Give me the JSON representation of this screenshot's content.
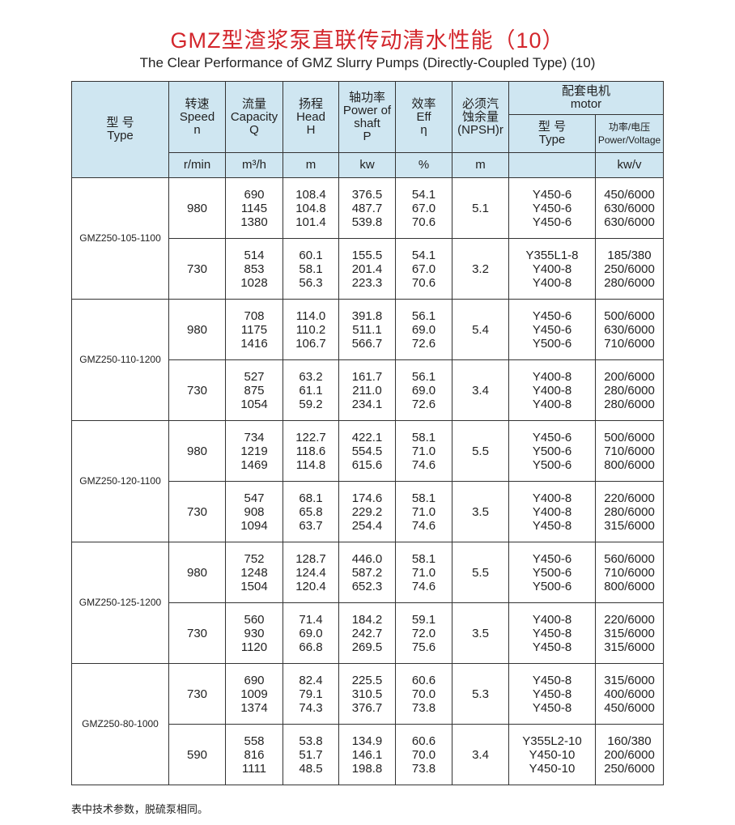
{
  "title": "GMZ型渣浆泵直联传动清水性能（10）",
  "subtitle": "The Clear Performance of GMZ Slurry Pumps (Directly-Coupled Type) (10)",
  "headers": {
    "type": [
      "型 号",
      "Type"
    ],
    "speed": [
      "转速",
      "Speed",
      "n"
    ],
    "capacity": [
      "流量",
      "Capacity",
      "Q"
    ],
    "head": [
      "扬程",
      "Head",
      "H"
    ],
    "power": [
      "轴功率",
      "Power of",
      "shaft",
      "P"
    ],
    "eff": [
      "效率",
      "Eff",
      "η"
    ],
    "npsh": [
      "必须汽",
      "蚀余量",
      "(NPSH)r"
    ],
    "motor": [
      "配套电机",
      "motor"
    ],
    "motor_type": [
      "型 号",
      "Type"
    ],
    "power_voltage": [
      "功率/电压",
      "Power/Voltage"
    ]
  },
  "units": {
    "speed": "r/min",
    "capacity": "m³/h",
    "head": "m",
    "power": "kw",
    "eff": "%",
    "npsh": "m",
    "power_voltage": "kw/v"
  },
  "groups": [
    {
      "type": "GMZ250-105-1100",
      "speeds": [
        {
          "speed": "980",
          "capacity": [
            "690",
            "1145",
            "1380"
          ],
          "head": [
            "108.4",
            "104.8",
            "101.4"
          ],
          "power": [
            "376.5",
            "487.7",
            "539.8"
          ],
          "eff": [
            "54.1",
            "67.0",
            "70.6"
          ],
          "npsh": "5.1",
          "motor_type": [
            "Y450-6",
            "Y450-6",
            "Y450-6"
          ],
          "power_voltage": [
            "450/6000",
            "630/6000",
            "630/6000"
          ]
        },
        {
          "speed": "730",
          "capacity": [
            "514",
            "853",
            "1028"
          ],
          "head": [
            "60.1",
            "58.1",
            "56.3"
          ],
          "power": [
            "155.5",
            "201.4",
            "223.3"
          ],
          "eff": [
            "54.1",
            "67.0",
            "70.6"
          ],
          "npsh": "3.2",
          "motor_type": [
            "Y355L1-8",
            "Y400-8",
            "Y400-8"
          ],
          "power_voltage": [
            "185/380",
            "250/6000",
            "280/6000"
          ]
        }
      ]
    },
    {
      "type": "GMZ250-110-1200",
      "speeds": [
        {
          "speed": "980",
          "capacity": [
            "708",
            "1175",
            "1416"
          ],
          "head": [
            "114.0",
            "110.2",
            "106.7"
          ],
          "power": [
            "391.8",
            "511.1",
            "566.7"
          ],
          "eff": [
            "56.1",
            "69.0",
            "72.6"
          ],
          "npsh": "5.4",
          "motor_type": [
            "Y450-6",
            "Y450-6",
            "Y500-6"
          ],
          "power_voltage": [
            "500/6000",
            "630/6000",
            "710/6000"
          ]
        },
        {
          "speed": "730",
          "capacity": [
            "527",
            "875",
            "1054"
          ],
          "head": [
            "63.2",
            "61.1",
            "59.2"
          ],
          "power": [
            "161.7",
            "211.0",
            "234.1"
          ],
          "eff": [
            "56.1",
            "69.0",
            "72.6"
          ],
          "npsh": "3.4",
          "motor_type": [
            "Y400-8",
            "Y400-8",
            "Y400-8"
          ],
          "power_voltage": [
            "200/6000",
            "280/6000",
            "280/6000"
          ]
        }
      ]
    },
    {
      "type": "GMZ250-120-1100",
      "speeds": [
        {
          "speed": "980",
          "capacity": [
            "734",
            "1219",
            "1469"
          ],
          "head": [
            "122.7",
            "118.6",
            "114.8"
          ],
          "power": [
            "422.1",
            "554.5",
            "615.6"
          ],
          "eff": [
            "58.1",
            "71.0",
            "74.6"
          ],
          "npsh": "5.5",
          "motor_type": [
            "Y450-6",
            "Y500-6",
            "Y500-6"
          ],
          "power_voltage": [
            "500/6000",
            "710/6000",
            "800/6000"
          ]
        },
        {
          "speed": "730",
          "capacity": [
            "547",
            "908",
            "1094"
          ],
          "head": [
            "68.1",
            "65.8",
            "63.7"
          ],
          "power": [
            "174.6",
            "229.2",
            "254.4"
          ],
          "eff": [
            "58.1",
            "71.0",
            "74.6"
          ],
          "npsh": "3.5",
          "motor_type": [
            "Y400-8",
            "Y400-8",
            "Y450-8"
          ],
          "power_voltage": [
            "220/6000",
            "280/6000",
            "315/6000"
          ]
        }
      ]
    },
    {
      "type": "GMZ250-125-1200",
      "speeds": [
        {
          "speed": "980",
          "capacity": [
            "752",
            "1248",
            "1504"
          ],
          "head": [
            "128.7",
            "124.4",
            "120.4"
          ],
          "power": [
            "446.0",
            "587.2",
            "652.3"
          ],
          "eff": [
            "58.1",
            "71.0",
            "74.6"
          ],
          "npsh": "5.5",
          "motor_type": [
            "Y450-6",
            "Y500-6",
            "Y500-6"
          ],
          "power_voltage": [
            "560/6000",
            "710/6000",
            "800/6000"
          ]
        },
        {
          "speed": "730",
          "capacity": [
            "560",
            "930",
            "1120"
          ],
          "head": [
            "71.4",
            "69.0",
            "66.8"
          ],
          "power": [
            "184.2",
            "242.7",
            "269.5"
          ],
          "eff": [
            "59.1",
            "72.0",
            "75.6"
          ],
          "npsh": "3.5",
          "motor_type": [
            "Y400-8",
            "Y450-8",
            "Y450-8"
          ],
          "power_voltage": [
            "220/6000",
            "315/6000",
            "315/6000"
          ]
        }
      ]
    },
    {
      "type": "GMZ250-80-1000",
      "speeds": [
        {
          "speed": "730",
          "capacity": [
            "690",
            "1009",
            "1374"
          ],
          "head": [
            "82.4",
            "79.1",
            "74.3"
          ],
          "power": [
            "225.5",
            "310.5",
            "376.7"
          ],
          "eff": [
            "60.6",
            "70.0",
            "73.8"
          ],
          "npsh": "5.3",
          "motor_type": [
            "Y450-8",
            "Y450-8",
            "Y450-8"
          ],
          "power_voltage": [
            "315/6000",
            "400/6000",
            "450/6000"
          ]
        },
        {
          "speed": "590",
          "capacity": [
            "558",
            "816",
            "1111"
          ],
          "head": [
            "53.8",
            "51.7",
            "48.5"
          ],
          "power": [
            "134.9",
            "146.1",
            "198.8"
          ],
          "eff": [
            "60.6",
            "70.0",
            "73.8"
          ],
          "npsh": "3.4",
          "motor_type": [
            "Y355L2-10",
            "Y450-10",
            "Y450-10"
          ],
          "power_voltage": [
            "160/380",
            "200/6000",
            "250/6000"
          ]
        }
      ]
    }
  ],
  "note": "表中技术参数，脱硫泵相同。"
}
